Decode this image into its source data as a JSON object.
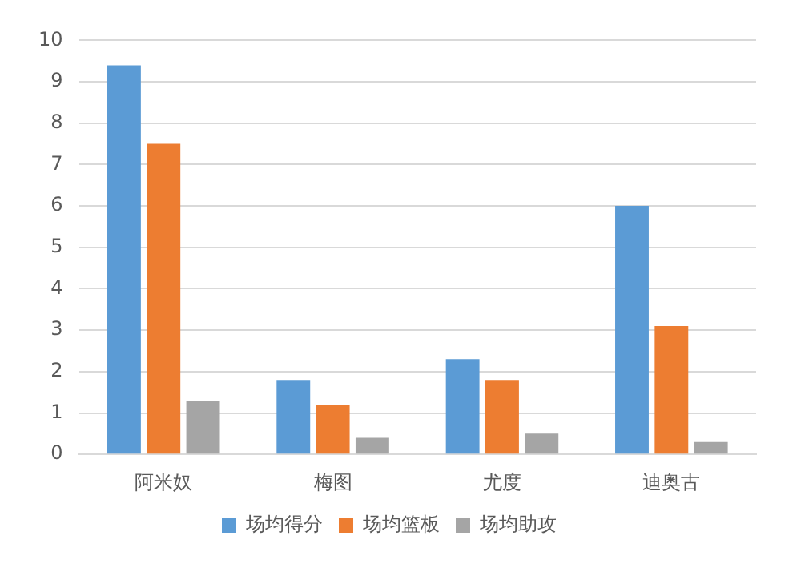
{
  "chart_data": {
    "type": "bar",
    "categories": [
      "阿米奴",
      "梅图",
      "尤度",
      "迪奥古"
    ],
    "series": [
      {
        "name": "场均得分",
        "color": "#5b9bd5",
        "values": [
          9.4,
          1.8,
          2.3,
          6.0
        ]
      },
      {
        "name": "场均篮板",
        "color": "#ed7d31",
        "values": [
          7.5,
          1.2,
          1.8,
          3.1
        ]
      },
      {
        "name": "场均助攻",
        "color": "#a5a5a5",
        "values": [
          1.3,
          0.4,
          0.5,
          0.3
        ]
      }
    ],
    "ylim": [
      0,
      10
    ],
    "yticks": [
      0,
      1,
      2,
      3,
      4,
      5,
      6,
      7,
      8,
      9,
      10
    ],
    "grid": "y",
    "legend": "bottom"
  }
}
